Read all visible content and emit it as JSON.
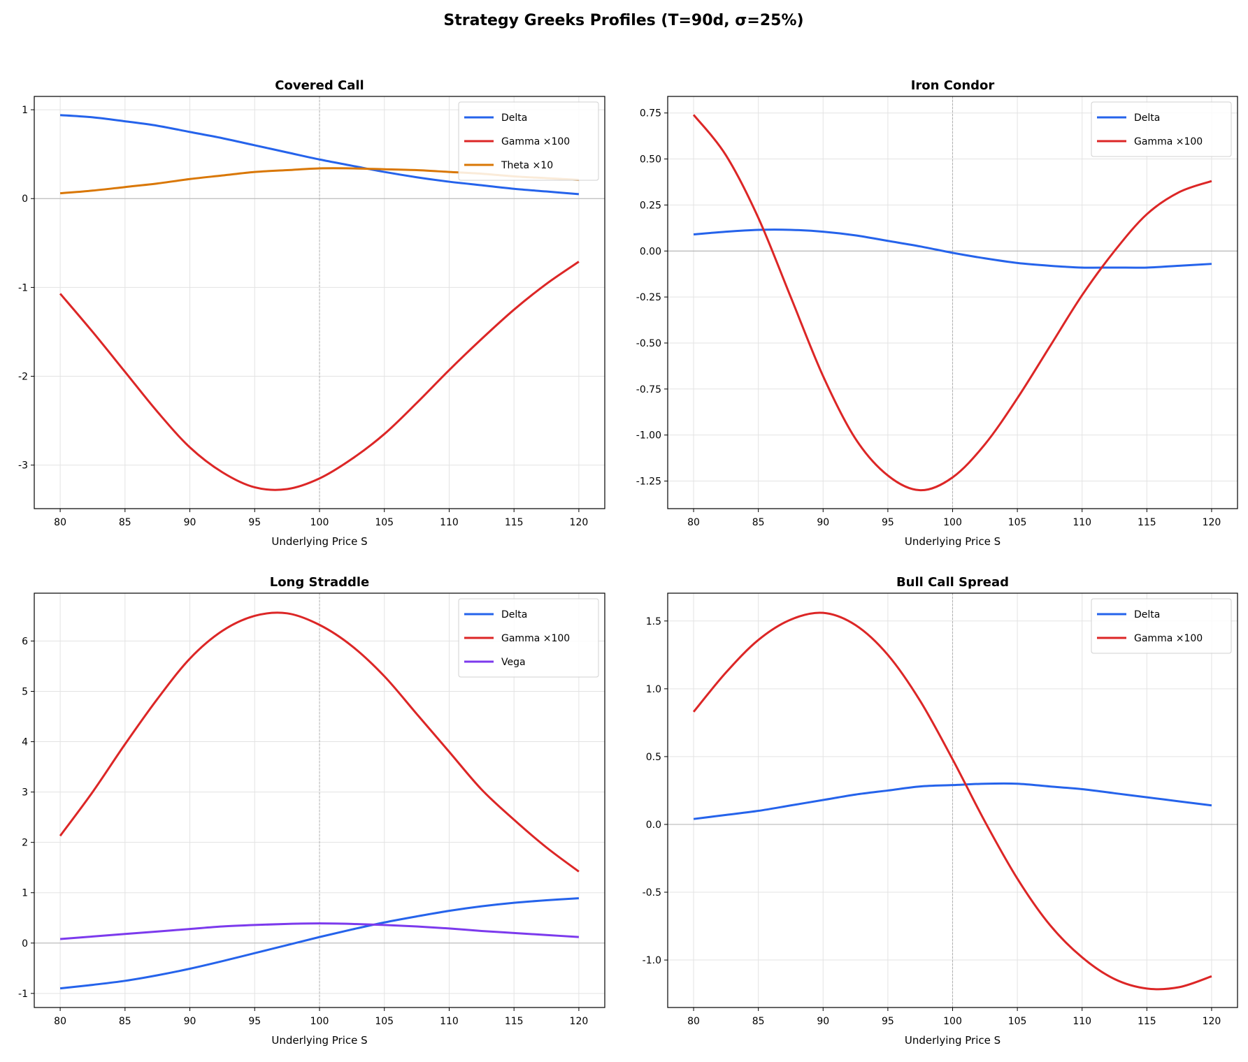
{
  "title": "Strategy Greeks Profiles (T=90d, σ=25%)",
  "chart_data": [
    {
      "type": "line",
      "title": "Covered Call",
      "xlabel": "Underlying Price S",
      "ylabel": "",
      "xlim": [
        78,
        122
      ],
      "ylim": [
        -3.49,
        1.15
      ],
      "xticks": [
        80,
        85,
        90,
        95,
        100,
        105,
        110,
        115,
        120
      ],
      "yticks": [
        {
          "v": 1,
          "label": "1"
        },
        {
          "v": 0,
          "label": "0"
        },
        {
          "v": -1,
          "label": "-1"
        },
        {
          "v": -2,
          "label": "-2"
        },
        {
          "v": -3,
          "label": "-3"
        }
      ],
      "grid": true,
      "legend": "top-right",
      "x": [
        80,
        82.5,
        85,
        87.5,
        90,
        92.5,
        95,
        97.5,
        100,
        102.5,
        105,
        107.5,
        110,
        112.5,
        115,
        117.5,
        120
      ],
      "series": [
        {
          "name": "Delta",
          "color": "#2563eb",
          "values": [
            0.94,
            0.915,
            0.87,
            0.82,
            0.75,
            0.68,
            0.6,
            0.52,
            0.44,
            0.37,
            0.3,
            0.24,
            0.19,
            0.15,
            0.11,
            0.08,
            0.05
          ]
        },
        {
          "name": "Gamma ×100",
          "color": "#dc2626",
          "values": [
            -1.07,
            -1.5,
            -1.95,
            -2.4,
            -2.8,
            -3.08,
            -3.25,
            -3.27,
            -3.15,
            -2.93,
            -2.65,
            -2.3,
            -1.93,
            -1.58,
            -1.25,
            -0.96,
            -0.71
          ]
        },
        {
          "name": "Theta ×10",
          "color": "#d97706",
          "values": [
            0.06,
            0.09,
            0.13,
            0.17,
            0.22,
            0.26,
            0.3,
            0.32,
            0.34,
            0.34,
            0.33,
            0.32,
            0.3,
            0.28,
            0.25,
            0.23,
            0.21
          ]
        }
      ]
    },
    {
      "type": "line",
      "title": "Iron Condor",
      "xlabel": "Underlying Price S",
      "ylabel": "",
      "xlim": [
        78,
        122
      ],
      "ylim": [
        -1.4,
        0.84
      ],
      "xticks": [
        80,
        85,
        90,
        95,
        100,
        105,
        110,
        115,
        120
      ],
      "yticks": [
        {
          "v": 0.75,
          "label": "0.75"
        },
        {
          "v": 0.5,
          "label": "0.50"
        },
        {
          "v": 0.25,
          "label": "0.25"
        },
        {
          "v": 0,
          "label": "0.00"
        },
        {
          "v": -0.25,
          "label": "-0.25"
        },
        {
          "v": -0.5,
          "label": "-0.50"
        },
        {
          "v": -0.75,
          "label": "-0.75"
        },
        {
          "v": -1.0,
          "label": "-1.00"
        },
        {
          "v": -1.25,
          "label": "-1.25"
        }
      ],
      "grid": true,
      "legend": "top-right",
      "x": [
        80,
        82.5,
        85,
        87.5,
        90,
        92.5,
        95,
        97.5,
        100,
        102.5,
        105,
        107.5,
        110,
        112.5,
        115,
        117.5,
        120
      ],
      "series": [
        {
          "name": "Delta",
          "color": "#2563eb",
          "values": [
            0.09,
            0.105,
            0.115,
            0.115,
            0.105,
            0.085,
            0.055,
            0.025,
            -0.01,
            -0.04,
            -0.065,
            -0.08,
            -0.09,
            -0.09,
            -0.09,
            -0.08,
            -0.07
          ]
        },
        {
          "name": "Gamma ×100",
          "color": "#dc2626",
          "values": [
            0.74,
            0.52,
            0.18,
            -0.25,
            -0.68,
            -1.02,
            -1.22,
            -1.3,
            -1.23,
            -1.05,
            -0.8,
            -0.52,
            -0.24,
            0.0,
            0.2,
            0.32,
            0.38
          ]
        }
      ]
    },
    {
      "type": "line",
      "title": "Long Straddle",
      "xlabel": "Underlying Price S",
      "ylabel": "",
      "xlim": [
        78,
        122
      ],
      "ylim": [
        -1.28,
        6.95
      ],
      "xticks": [
        80,
        85,
        90,
        95,
        100,
        105,
        110,
        115,
        120
      ],
      "yticks": [
        {
          "v": 6,
          "label": "6"
        },
        {
          "v": 5,
          "label": "5"
        },
        {
          "v": 4,
          "label": "4"
        },
        {
          "v": 3,
          "label": "3"
        },
        {
          "v": 2,
          "label": "2"
        },
        {
          "v": 1,
          "label": "1"
        },
        {
          "v": 0,
          "label": "0"
        },
        {
          "v": -1,
          "label": "-1"
        }
      ],
      "grid": true,
      "legend": "top-right",
      "x": [
        80,
        82.5,
        85,
        87.5,
        90,
        92.5,
        95,
        97.5,
        100,
        102.5,
        105,
        107.5,
        110,
        112.5,
        115,
        117.5,
        120
      ],
      "series": [
        {
          "name": "Delta",
          "color": "#2563eb",
          "values": [
            -0.9,
            -0.83,
            -0.75,
            -0.64,
            -0.51,
            -0.36,
            -0.2,
            -0.04,
            0.12,
            0.27,
            0.41,
            0.53,
            0.64,
            0.73,
            0.8,
            0.85,
            0.89
          ]
        },
        {
          "name": "Gamma ×100",
          "color": "#dc2626",
          "values": [
            2.13,
            3.0,
            3.95,
            4.85,
            5.65,
            6.2,
            6.5,
            6.55,
            6.32,
            5.9,
            5.3,
            4.55,
            3.8,
            3.05,
            2.45,
            1.9,
            1.42
          ]
        },
        {
          "name": "Vega",
          "color": "#7c3aed",
          "values": [
            0.08,
            0.13,
            0.18,
            0.23,
            0.28,
            0.33,
            0.36,
            0.38,
            0.39,
            0.38,
            0.36,
            0.33,
            0.29,
            0.24,
            0.2,
            0.16,
            0.12
          ]
        }
      ]
    },
    {
      "type": "line",
      "title": "Bull Call Spread",
      "xlabel": "Underlying Price S",
      "ylabel": "",
      "xlim": [
        78,
        122
      ],
      "ylim": [
        -1.35,
        1.705
      ],
      "xticks": [
        80,
        85,
        90,
        95,
        100,
        105,
        110,
        115,
        120
      ],
      "yticks": [
        {
          "v": 1.5,
          "label": "1.5"
        },
        {
          "v": 1.0,
          "label": "1.0"
        },
        {
          "v": 0.5,
          "label": "0.5"
        },
        {
          "v": 0,
          "label": "0.0"
        },
        {
          "v": -0.5,
          "label": "-0.5"
        },
        {
          "v": -1.0,
          "label": "-1.0"
        }
      ],
      "grid": true,
      "legend": "top-right",
      "x": [
        80,
        82.5,
        85,
        87.5,
        90,
        92.5,
        95,
        97.5,
        100,
        102.5,
        105,
        107.5,
        110,
        112.5,
        115,
        117.5,
        120
      ],
      "series": [
        {
          "name": "Delta",
          "color": "#2563eb",
          "values": [
            0.04,
            0.07,
            0.1,
            0.14,
            0.18,
            0.22,
            0.25,
            0.28,
            0.29,
            0.3,
            0.3,
            0.28,
            0.26,
            0.23,
            0.2,
            0.17,
            0.14
          ]
        },
        {
          "name": "Gamma ×100",
          "color": "#dc2626",
          "values": [
            0.83,
            1.12,
            1.36,
            1.51,
            1.56,
            1.47,
            1.25,
            0.91,
            0.48,
            0.02,
            -0.4,
            -0.74,
            -0.98,
            -1.14,
            -1.21,
            -1.2,
            -1.12
          ]
        }
      ]
    }
  ]
}
